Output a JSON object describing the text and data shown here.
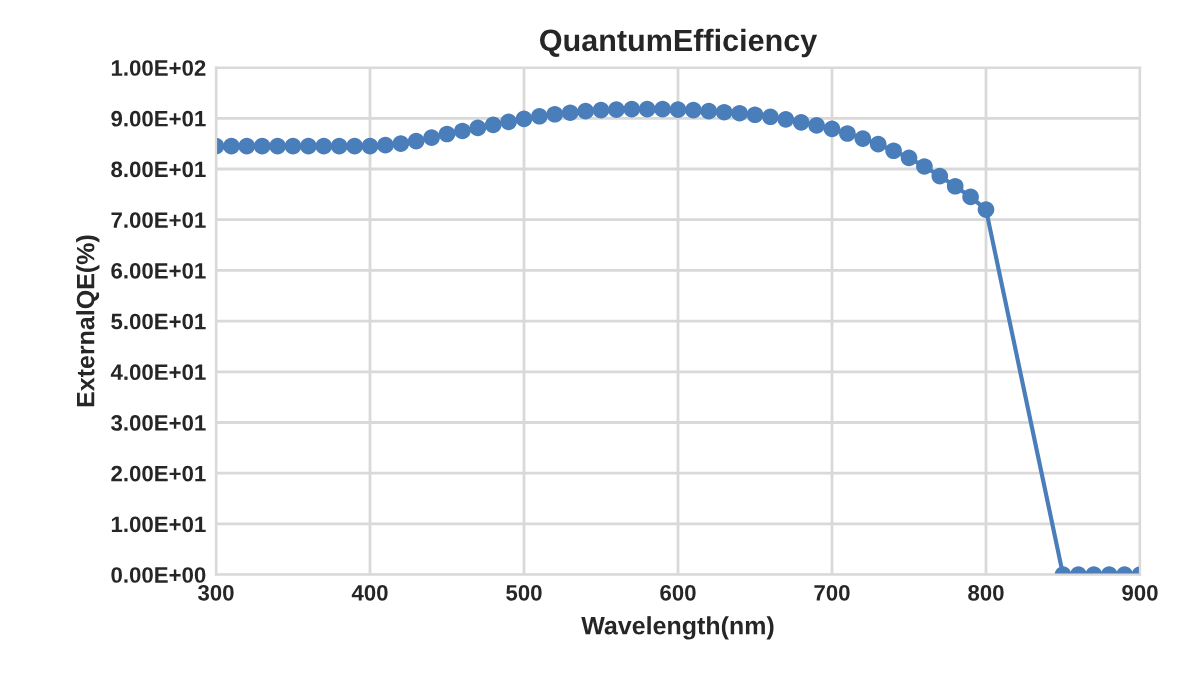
{
  "chart_data": {
    "type": "line",
    "title": "QuantumEfficiency",
    "xlabel": "Wavelength(nm)",
    "ylabel": "ExternalQE(%)",
    "x": [
      300,
      310,
      320,
      330,
      340,
      350,
      360,
      370,
      380,
      390,
      400,
      410,
      420,
      430,
      440,
      450,
      460,
      470,
      480,
      490,
      500,
      510,
      520,
      530,
      540,
      550,
      560,
      570,
      580,
      590,
      600,
      610,
      620,
      630,
      640,
      650,
      660,
      670,
      680,
      690,
      700,
      710,
      720,
      730,
      740,
      750,
      760,
      770,
      780,
      790,
      800,
      850,
      860,
      870,
      880,
      890,
      900
    ],
    "series": [
      {
        "color": "#4a7ebb",
        "values": [
          84.5,
          84.5,
          84.5,
          84.5,
          84.5,
          84.5,
          84.5,
          84.5,
          84.5,
          84.5,
          84.5,
          84.7,
          85.0,
          85.5,
          86.2,
          86.9,
          87.5,
          88.1,
          88.7,
          89.3,
          89.9,
          90.4,
          90.8,
          91.1,
          91.4,
          91.6,
          91.7,
          91.8,
          91.8,
          91.8,
          91.7,
          91.6,
          91.4,
          91.2,
          91.0,
          90.7,
          90.3,
          89.8,
          89.2,
          88.6,
          87.9,
          87.0,
          86.0,
          84.9,
          83.6,
          82.2,
          80.5,
          78.6,
          76.6,
          74.5,
          72.0,
          0,
          0,
          0,
          0,
          0,
          0
        ]
      }
    ],
    "xlim": [
      300,
      900
    ],
    "xticks": [
      300,
      400,
      500,
      600,
      700,
      800,
      900
    ],
    "ylim": [
      0,
      100
    ],
    "yticks": [
      {
        "value": 0,
        "label": "0.00E+00"
      },
      {
        "value": 10,
        "label": "1.00E+01"
      },
      {
        "value": 20,
        "label": "2.00E+01"
      },
      {
        "value": 30,
        "label": "3.00E+01"
      },
      {
        "value": 40,
        "label": "4.00E+01"
      },
      {
        "value": 50,
        "label": "5.00E+01"
      },
      {
        "value": 60,
        "label": "6.00E+01"
      },
      {
        "value": 70,
        "label": "7.00E+01"
      },
      {
        "value": 80,
        "label": "8.00E+01"
      },
      {
        "value": 90,
        "label": "9.00E+01"
      },
      {
        "value": 100,
        "label": "1.00E+02"
      }
    ],
    "grid": true,
    "marker": "circle",
    "line_style": "solid"
  }
}
